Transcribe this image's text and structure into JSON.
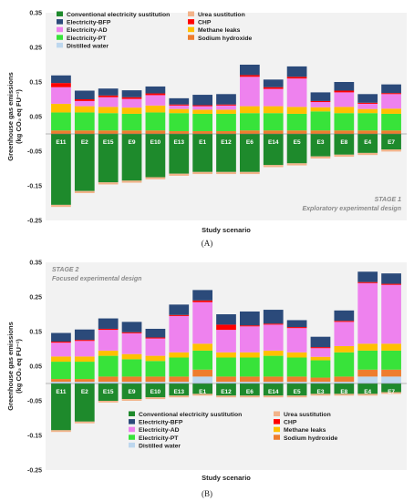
{
  "figure": {
    "panel_labels": [
      "(A)",
      "(B)"
    ]
  },
  "chart_data": [
    {
      "type": "bar",
      "stacked": true,
      "title": "",
      "panel_label": "(A)",
      "xlabel": "Study scenario",
      "ylabel_lines": [
        "Greenhouse gas emissions",
        "(kg CO₂ eq FU⁻¹)"
      ],
      "ylim": [
        -0.25,
        0.35
      ],
      "yticks": [
        0.35,
        0.25,
        0.15,
        0.05,
        -0.05,
        -0.15,
        -0.25
      ],
      "ytick_labels": [
        "0.35",
        "0.25",
        "0.15",
        "0.05",
        "-0.05",
        "-0.15",
        "-0.25"
      ],
      "annotation_lines": [
        "STAGE 1",
        "Exploratory experimental design"
      ],
      "annotation_position": "bottom-right",
      "legend_position": "top-left",
      "legend_columns": 2,
      "legend": [
        "Conventional electricity sustitution",
        "Urea sustitution",
        "Electricity-BFP",
        "CHP",
        "Electricity-AD",
        "Methane leaks",
        "Electricity-PT",
        "Sodium hydroxide",
        "Distilled water"
      ],
      "categories": [
        "E11",
        "E2",
        "E15",
        "E9",
        "E10",
        "E13",
        "E1",
        "E12",
        "E6",
        "E14",
        "E5",
        "E3",
        "E8",
        "E4",
        "E7"
      ],
      "series": [
        {
          "name": "Conventional electricity sustitution",
          "color": "#1e8a2c",
          "values": [
            -0.205,
            -0.165,
            -0.14,
            -0.135,
            -0.125,
            -0.115,
            -0.11,
            -0.11,
            -0.11,
            -0.09,
            -0.085,
            -0.065,
            -0.06,
            -0.055,
            -0.045
          ]
        },
        {
          "name": "Urea sustitution",
          "color": "#f2b38a",
          "values": [
            -0.006,
            -0.006,
            -0.006,
            -0.006,
            -0.006,
            -0.006,
            -0.006,
            -0.006,
            -0.006,
            -0.006,
            -0.006,
            -0.006,
            -0.006,
            -0.006,
            -0.006
          ]
        },
        {
          "name": "Sodium hydroxide",
          "color": "#ee7d2e",
          "values": [
            0.01,
            0.01,
            0.01,
            0.01,
            0.01,
            0.008,
            0.008,
            0.008,
            0.01,
            0.01,
            0.01,
            0.01,
            0.01,
            0.01,
            0.01
          ]
        },
        {
          "name": "Electricity-PT",
          "color": "#38e33a",
          "values": [
            0.052,
            0.052,
            0.05,
            0.048,
            0.052,
            0.052,
            0.05,
            0.05,
            0.05,
            0.05,
            0.048,
            0.055,
            0.05,
            0.05,
            0.048
          ]
        },
        {
          "name": "Methane leaks",
          "color": "#ffc000",
          "values": [
            0.025,
            0.018,
            0.018,
            0.018,
            0.02,
            0.012,
            0.012,
            0.012,
            0.02,
            0.02,
            0.02,
            0.012,
            0.018,
            0.012,
            0.015
          ]
        },
        {
          "name": "Electricity-AD",
          "color": "#ee82ee",
          "values": [
            0.048,
            0.015,
            0.028,
            0.025,
            0.03,
            0.01,
            0.01,
            0.012,
            0.085,
            0.05,
            0.082,
            0.015,
            0.042,
            0.015,
            0.042
          ]
        },
        {
          "name": "CHP",
          "color": "#ff0000",
          "values": [
            0.012,
            0.005,
            0.005,
            0.005,
            0.005,
            0.003,
            0.003,
            0.003,
            0.005,
            0.005,
            0.005,
            0.003,
            0.005,
            0.003,
            0.003
          ]
        },
        {
          "name": "Electricity-BFP",
          "color": "#2b4a7a",
          "values": [
            0.022,
            0.025,
            0.02,
            0.02,
            0.02,
            0.018,
            0.03,
            0.03,
            0.03,
            0.022,
            0.03,
            0.025,
            0.025,
            0.025,
            0.025
          ]
        },
        {
          "name": "Distilled water",
          "color": "#bdd7ee",
          "values": [
            0,
            0,
            0,
            0,
            0,
            0,
            0,
            0,
            0,
            0,
            0,
            0,
            0,
            0,
            0
          ]
        }
      ]
    },
    {
      "type": "bar",
      "stacked": true,
      "title": "",
      "panel_label": "(B)",
      "xlabel": "Study scenario",
      "ylabel_lines": [
        "Greenhouse gas emissions",
        "(kg CO₂ eq FU⁻¹)"
      ],
      "ylim": [
        -0.25,
        0.35
      ],
      "yticks": [
        0.35,
        0.25,
        0.15,
        0.05,
        -0.05,
        -0.15,
        -0.25
      ],
      "ytick_labels": [
        "0.35",
        "0.25",
        "0.15",
        "0.05",
        "-0.05",
        "-0.15",
        "-0.25"
      ],
      "annotation_lines": [
        "STAGE 2",
        "Focused experimental design"
      ],
      "annotation_position": "top-left",
      "legend_position": "bottom-center",
      "legend_columns": 2,
      "legend": [
        "Conventional electricity sustitution",
        "Urea sustitution",
        "Electricity-BFP",
        "CHP",
        "Electricity-AD",
        "Methane leaks",
        "Electricity-PT",
        "Sodium hydroxide",
        "Distilled water"
      ],
      "categories": [
        "E11",
        "E2",
        "E15",
        "E9",
        "E10",
        "E13",
        "E1",
        "E12",
        "E6",
        "E14",
        "E5",
        "E3",
        "E8",
        "E4",
        "E7"
      ],
      "series": [
        {
          "name": "Conventional electricity sustitution",
          "color": "#1e8a2c",
          "values": [
            -0.135,
            -0.11,
            -0.05,
            -0.045,
            -0.04,
            -0.035,
            -0.03,
            -0.035,
            -0.035,
            -0.035,
            -0.035,
            -0.03,
            -0.03,
            -0.03,
            -0.025
          ]
        },
        {
          "name": "Urea sustitution",
          "color": "#f2b38a",
          "values": [
            -0.005,
            -0.005,
            -0.005,
            -0.005,
            -0.005,
            -0.005,
            -0.005,
            -0.005,
            -0.005,
            -0.005,
            -0.005,
            -0.005,
            -0.005,
            -0.005,
            -0.005
          ]
        },
        {
          "name": "Distilled water",
          "color": "#bdd7ee",
          "values": [
            0.005,
            0.005,
            0.005,
            0.005,
            0.005,
            0.005,
            0.02,
            0.005,
            0.005,
            0.005,
            0.005,
            0.005,
            0.005,
            0.02,
            0.02
          ]
        },
        {
          "name": "Sodium hydroxide",
          "color": "#ee7d2e",
          "values": [
            0.008,
            0.008,
            0.015,
            0.015,
            0.015,
            0.015,
            0.02,
            0.015,
            0.015,
            0.015,
            0.015,
            0.012,
            0.015,
            0.02,
            0.02
          ]
        },
        {
          "name": "Electricity-PT",
          "color": "#38e33a",
          "values": [
            0.05,
            0.05,
            0.06,
            0.05,
            0.045,
            0.055,
            0.055,
            0.055,
            0.055,
            0.06,
            0.055,
            0.05,
            0.07,
            0.055,
            0.055
          ]
        },
        {
          "name": "Methane leaks",
          "color": "#ffc000",
          "values": [
            0.015,
            0.015,
            0.015,
            0.015,
            0.015,
            0.015,
            0.02,
            0.015,
            0.015,
            0.015,
            0.015,
            0.01,
            0.018,
            0.02,
            0.02
          ]
        },
        {
          "name": "Electricity-AD",
          "color": "#ee82ee",
          "values": [
            0.04,
            0.045,
            0.06,
            0.06,
            0.05,
            0.105,
            0.12,
            0.065,
            0.075,
            0.075,
            0.07,
            0.025,
            0.07,
            0.175,
            0.17
          ]
        },
        {
          "name": "CHP",
          "color": "#ff0000",
          "values": [
            0.003,
            0.003,
            0.003,
            0.003,
            0.003,
            0.003,
            0.005,
            0.015,
            0.003,
            0.003,
            0.003,
            0.003,
            0.003,
            0.003,
            0.003
          ]
        },
        {
          "name": "Electricity-BFP",
          "color": "#2b4a7a",
          "values": [
            0.025,
            0.03,
            0.03,
            0.03,
            0.025,
            0.03,
            0.03,
            0.03,
            0.04,
            0.04,
            0.02,
            0.03,
            0.03,
            0.03,
            0.03
          ]
        }
      ]
    }
  ]
}
